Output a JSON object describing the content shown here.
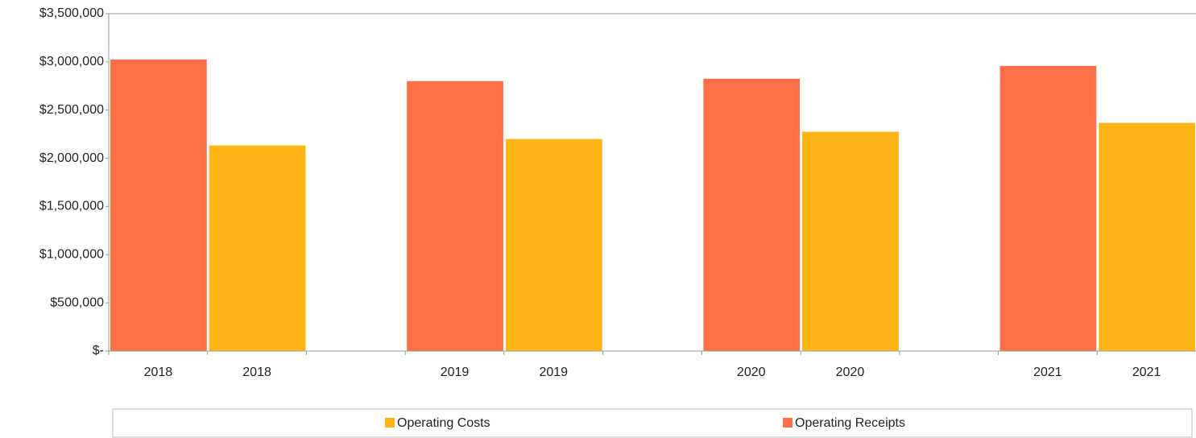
{
  "chart_data": {
    "type": "bar",
    "categories": [
      "2018",
      "2018",
      null,
      "2019",
      "2019",
      null,
      "2020",
      "2020",
      null,
      "2021",
      "2021"
    ],
    "series": [
      {
        "name": "Operating Costs",
        "color": "#fdb515",
        "values": [
          null,
          2133000,
          null,
          null,
          2200000,
          null,
          null,
          2275000,
          null,
          null,
          2367000
        ]
      },
      {
        "name": "Operating Receipts",
        "color": "#ff6f47",
        "values": [
          3025000,
          null,
          null,
          2800000,
          null,
          null,
          2825000,
          null,
          null,
          2958000,
          null
        ]
      }
    ],
    "ylim": [
      0,
      3500000
    ],
    "yticks": [
      {
        "value": 0,
        "label": "$-"
      },
      {
        "value": 500000,
        "label": "$500,000"
      },
      {
        "value": 1000000,
        "label": "$1,000,000"
      },
      {
        "value": 1500000,
        "label": "$1,500,000"
      },
      {
        "value": 2000000,
        "label": "$2,000,000"
      },
      {
        "value": 2500000,
        "label": "$2,500,000"
      },
      {
        "value": 3000000,
        "label": "$3,000,000"
      },
      {
        "value": 3500000,
        "label": "$3,500,000"
      }
    ],
    "grid": false,
    "legend": "bottom"
  }
}
